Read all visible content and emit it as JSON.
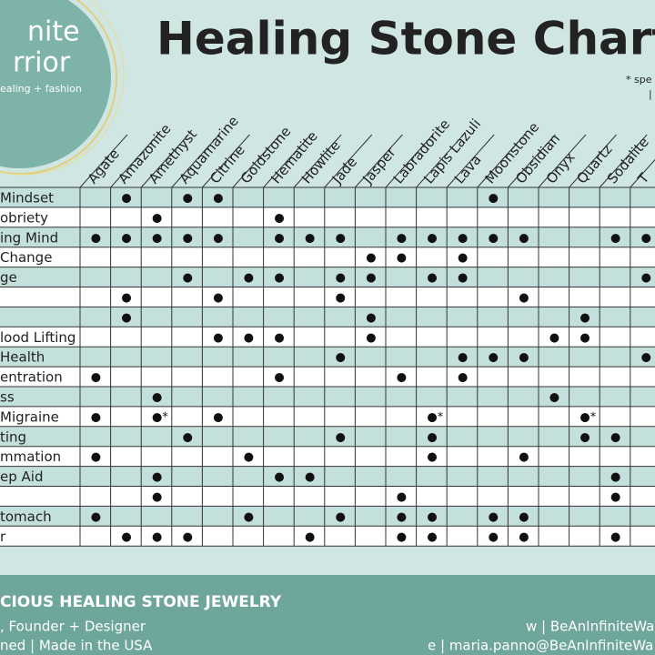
{
  "logo": {
    "lines": [
      "nite",
      "rrior",
      "ealing + fashion"
    ]
  },
  "header": {
    "title": "Healing Stone Chart",
    "note": "* spe",
    "note_mark": "|"
  },
  "table": {
    "columns": [
      "Agate",
      "Amazonite",
      "Amethyst",
      "Aquamarine",
      "Citrine",
      "Goldstone",
      "Hematite",
      "Howlite",
      "Jade",
      "Jasper",
      "Labradorite",
      "Lapis Lazuli",
      "Lava",
      "Moonstone",
      "Obsidian",
      "Onyx",
      "Quartz",
      "Sodalite",
      "T"
    ],
    "rows": [
      {
        "label": "Mindset",
        "cells": [
          null,
          "●",
          null,
          "●",
          "●",
          null,
          null,
          null,
          null,
          null,
          null,
          null,
          null,
          "●",
          null,
          null,
          null,
          null,
          null
        ]
      },
      {
        "label": "obriety",
        "cells": [
          null,
          null,
          "●",
          null,
          null,
          null,
          "●",
          null,
          null,
          null,
          null,
          null,
          null,
          null,
          null,
          null,
          null,
          null,
          null
        ]
      },
      {
        "label": "ing Mind",
        "cells": [
          "●",
          "●",
          "●",
          "●",
          "●",
          null,
          "●",
          "●",
          "●",
          null,
          "●",
          "●",
          "●",
          "●",
          "●",
          null,
          null,
          "●",
          "●"
        ]
      },
      {
        "label": "Change",
        "cells": [
          null,
          null,
          null,
          null,
          null,
          null,
          null,
          null,
          null,
          "●",
          "●",
          null,
          "●",
          null,
          null,
          null,
          null,
          null,
          null
        ]
      },
      {
        "label": "ge",
        "cells": [
          null,
          null,
          null,
          "●",
          null,
          "●",
          "●",
          null,
          "●",
          "●",
          null,
          "●",
          "●",
          null,
          null,
          null,
          null,
          null,
          "●"
        ]
      },
      {
        "label": null,
        "cells": [
          null,
          "●",
          null,
          null,
          "●",
          null,
          null,
          null,
          "●",
          null,
          null,
          null,
          null,
          null,
          "●",
          null,
          null,
          null,
          null
        ]
      },
      {
        "label": null,
        "cells": [
          null,
          "●",
          null,
          null,
          null,
          null,
          null,
          null,
          null,
          "●",
          null,
          null,
          null,
          null,
          null,
          null,
          "●",
          null,
          null
        ]
      },
      {
        "label": "lood Lifting",
        "cells": [
          null,
          null,
          null,
          null,
          "●",
          "●",
          "●",
          null,
          null,
          "●",
          null,
          null,
          null,
          null,
          null,
          "●",
          "●",
          null,
          null
        ]
      },
      {
        "label": "Health",
        "cells": [
          null,
          null,
          null,
          null,
          null,
          null,
          null,
          null,
          "●",
          null,
          null,
          null,
          "●",
          "●",
          "●",
          null,
          null,
          null,
          "●"
        ]
      },
      {
        "label": "entration",
        "cells": [
          "●",
          null,
          null,
          null,
          null,
          null,
          "●",
          null,
          null,
          null,
          "●",
          null,
          "●",
          null,
          null,
          null,
          null,
          null,
          null
        ]
      },
      {
        "label": "ss",
        "cells": [
          null,
          null,
          "●",
          null,
          null,
          null,
          null,
          null,
          null,
          null,
          null,
          null,
          null,
          null,
          null,
          "●",
          null,
          null,
          null
        ]
      },
      {
        "label": "Migraine",
        "cells": [
          "●",
          null,
          "●*",
          null,
          "●",
          null,
          null,
          null,
          null,
          null,
          null,
          "●*",
          null,
          null,
          null,
          null,
          "●*",
          null,
          null
        ]
      },
      {
        "label": "ting",
        "cells": [
          null,
          null,
          null,
          "●",
          null,
          null,
          null,
          null,
          "●",
          null,
          null,
          "●",
          null,
          null,
          null,
          null,
          "●",
          "●",
          null
        ]
      },
      {
        "label": "mmation",
        "cells": [
          "●",
          null,
          null,
          null,
          null,
          "●",
          null,
          null,
          null,
          null,
          null,
          "●",
          null,
          null,
          "●",
          null,
          null,
          null,
          null
        ]
      },
      {
        "label": "ep Aid",
        "cells": [
          null,
          null,
          "●",
          null,
          null,
          null,
          "●",
          "●",
          null,
          null,
          null,
          null,
          null,
          null,
          null,
          null,
          null,
          "●",
          null
        ]
      },
      {
        "label": null,
        "cells": [
          null,
          null,
          "●",
          null,
          null,
          null,
          null,
          null,
          null,
          null,
          "●",
          null,
          null,
          null,
          null,
          null,
          null,
          "●",
          null
        ]
      },
      {
        "label": "tomach",
        "cells": [
          "●",
          null,
          null,
          null,
          null,
          "●",
          null,
          null,
          "●",
          null,
          "●",
          "●",
          null,
          "●",
          "●",
          null,
          null,
          null,
          null
        ]
      },
      {
        "label": "r",
        "cells": [
          null,
          "●",
          "●",
          "●",
          null,
          null,
          null,
          "●",
          null,
          null,
          "●",
          "●",
          null,
          "●",
          "●",
          null,
          null,
          "●",
          null
        ]
      }
    ]
  },
  "footer": {
    "tagline": "CIOUS HEALING STONE JEWELRY",
    "lines": [
      ", Founder + Designer",
      "ned | Made in the USA"
    ],
    "contacts": [
      "w | BeAnInfiniteWa",
      "e | maria.panno@BeAnInfiniteWa"
    ]
  }
}
